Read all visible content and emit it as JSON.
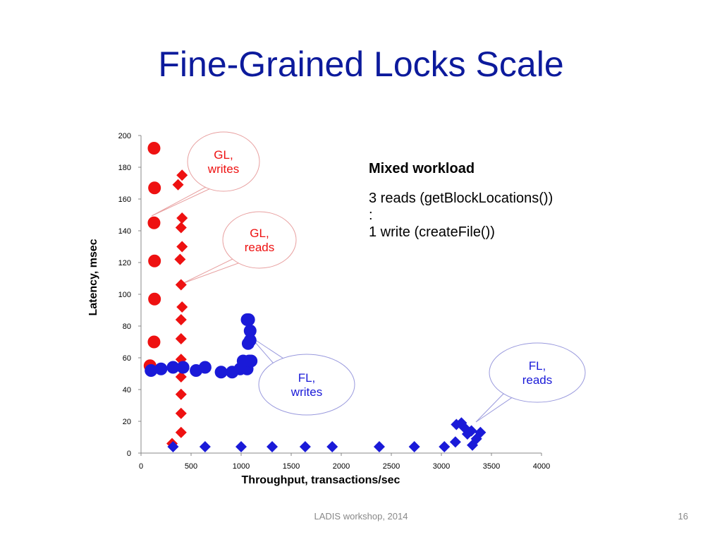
{
  "slide": {
    "title": "Fine-Grained Locks Scale"
  },
  "note": {
    "heading": "Mixed workload",
    "lines": [
      "3 reads (getBlockLocations())",
      ":",
      "1 write (createFile())"
    ]
  },
  "callouts": {
    "gl_writes": [
      "GL,",
      "writes"
    ],
    "gl_reads": [
      "GL,",
      "reads"
    ],
    "fl_writes": [
      "FL,",
      "writes"
    ],
    "fl_reads": [
      "FL,",
      "reads"
    ]
  },
  "footer": {
    "center": "LADIS workshop, 2014",
    "page_number": "16"
  },
  "colors": {
    "title": "#0c1a9c",
    "gl": "#ee1111",
    "fl": "#1a1ad8",
    "callout_gl_text": "#ee1111",
    "callout_fl_text": "#1a1ad8"
  },
  "chart_data": {
    "type": "scatter",
    "xlabel": "Throughput, transactions/sec",
    "ylabel": "Latency, msec",
    "xlim": [
      0,
      4000
    ],
    "ylim": [
      0,
      200
    ],
    "x_ticks": [
      0,
      500,
      1000,
      1500,
      2000,
      2500,
      3000,
      3500,
      4000
    ],
    "y_ticks": [
      0,
      20,
      40,
      60,
      80,
      100,
      120,
      140,
      160,
      180,
      200
    ],
    "grid": false,
    "series": [
      {
        "key": "gl_writes",
        "marker": "circle",
        "color": "#ee1111",
        "points": [
          [
            90,
            55
          ],
          [
            130,
            70
          ],
          [
            135,
            97
          ],
          [
            135,
            121
          ],
          [
            130,
            145
          ],
          [
            135,
            167
          ],
          [
            130,
            192
          ]
        ]
      },
      {
        "key": "gl_reads",
        "marker": "diamond",
        "color": "#ee1111",
        "points": [
          [
            310,
            6
          ],
          [
            400,
            13
          ],
          [
            400,
            25
          ],
          [
            400,
            37
          ],
          [
            400,
            48
          ],
          [
            400,
            59
          ],
          [
            400,
            72
          ],
          [
            400,
            84
          ],
          [
            410,
            92
          ],
          [
            400,
            106
          ],
          [
            390,
            122
          ],
          [
            410,
            130
          ],
          [
            400,
            142
          ],
          [
            410,
            148
          ],
          [
            370,
            169
          ],
          [
            410,
            175
          ]
        ]
      },
      {
        "key": "fl_writes",
        "marker": "circle",
        "color": "#1a1ad8",
        "points": [
          [
            100,
            52
          ],
          [
            200,
            53
          ],
          [
            320,
            54
          ],
          [
            420,
            54
          ],
          [
            550,
            52
          ],
          [
            640,
            54
          ],
          [
            800,
            51
          ],
          [
            910,
            51
          ],
          [
            990,
            53
          ],
          [
            1020,
            58
          ],
          [
            1060,
            53
          ],
          [
            1080,
            58
          ],
          [
            1100,
            58
          ],
          [
            1070,
            69
          ],
          [
            1090,
            71
          ],
          [
            1090,
            77
          ],
          [
            1075,
            84
          ],
          [
            1060,
            84
          ]
        ]
      },
      {
        "key": "fl_reads",
        "marker": "diamond",
        "color": "#1a1ad8",
        "points": [
          [
            320,
            4
          ],
          [
            640,
            4
          ],
          [
            1000,
            4
          ],
          [
            1310,
            4
          ],
          [
            1640,
            4
          ],
          [
            1910,
            4
          ],
          [
            2380,
            4
          ],
          [
            2730,
            4
          ],
          [
            3030,
            4
          ],
          [
            3140,
            7
          ],
          [
            3150,
            18
          ],
          [
            3200,
            19
          ],
          [
            3260,
            12
          ],
          [
            3300,
            14
          ],
          [
            3310,
            5
          ],
          [
            3350,
            9
          ],
          [
            3390,
            13
          ],
          [
            3230,
            16
          ]
        ]
      }
    ]
  }
}
